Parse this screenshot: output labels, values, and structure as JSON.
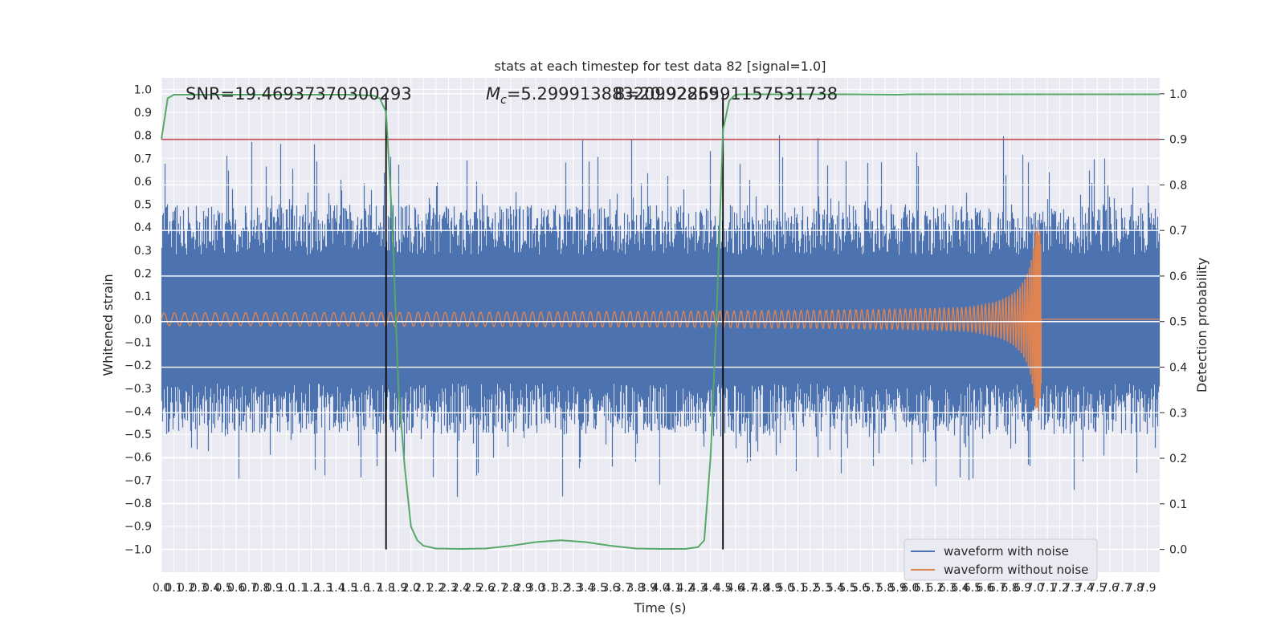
{
  "chart_data": {
    "type": "line",
    "title": "stats at each timestep for test data 82 [signal=1.0]",
    "xlabel": "Time (s)",
    "ylabel_left": "Whitened strain",
    "ylabel_right": "Detection probability",
    "xlim": [
      0.0,
      8.0
    ],
    "ylim_left": [
      -1.1,
      1.05
    ],
    "ylim_right": [
      -0.05,
      1.035
    ],
    "x_ticks": [
      "0.0",
      "0.1",
      "0.2",
      "0.3",
      "0.4",
      "0.5",
      "0.6",
      "0.7",
      "0.8",
      "0.9",
      "1.0",
      "1.1",
      "1.2",
      "1.3",
      "1.4",
      "1.5",
      "1.6",
      "1.7",
      "1.8",
      "1.9",
      "2.0",
      "2.1",
      "2.2",
      "2.3",
      "2.4",
      "2.5",
      "2.6",
      "2.7",
      "2.8",
      "2.9",
      "3.0",
      "3.1",
      "3.2",
      "3.3",
      "3.4",
      "3.5",
      "3.6",
      "3.7",
      "3.8",
      "3.9",
      "4.0",
      "4.1",
      "4.2",
      "4.3",
      "4.4",
      "4.5",
      "4.6",
      "4.7",
      "4.8",
      "4.9",
      "5.0",
      "5.1",
      "5.2",
      "5.3",
      "5.4",
      "5.5",
      "5.6",
      "5.7",
      "5.8",
      "5.9",
      "6.0",
      "6.1",
      "6.2",
      "6.3",
      "6.4",
      "6.5",
      "6.6",
      "6.7",
      "6.8",
      "6.9",
      "7.0",
      "7.1",
      "7.2",
      "7.3",
      "7.4",
      "7.5",
      "7.6",
      "7.7",
      "7.8",
      "7.9"
    ],
    "y_ticks_left": [
      "1.0",
      "0.9",
      "0.8",
      "0.7",
      "0.6",
      "0.5",
      "0.4",
      "0.3",
      "0.2",
      "0.1",
      "0.0",
      "−0.1",
      "−0.2",
      "−0.3",
      "−0.4",
      "−0.5",
      "−0.6",
      "−0.7",
      "−0.8",
      "−0.9",
      "−1.0"
    ],
    "y_ticks_right": [
      "1.0",
      "0.9",
      "0.8",
      "0.7",
      "0.6",
      "0.5",
      "0.4",
      "0.3",
      "0.2",
      "0.1",
      "0.0"
    ],
    "annotations": {
      "snr": "SNR=19.46937370300293",
      "mc_prefix": "M",
      "mc_sub": "c",
      "mc_value": "=5.29991388320992859",
      "overlap_text": "8=20.9226591157531738"
    },
    "threshold": 0.9,
    "event_window_s": [
      1.8,
      4.5
    ],
    "merger_time_s": 7.05,
    "detection_probability": {
      "x": [
        0.0,
        0.05,
        0.1,
        0.5,
        1.0,
        1.5,
        1.7,
        1.75,
        1.8,
        1.85,
        1.9,
        1.95,
        2.0,
        2.05,
        2.1,
        2.2,
        2.4,
        2.6,
        2.8,
        3.0,
        3.2,
        3.4,
        3.6,
        3.8,
        4.0,
        4.2,
        4.3,
        4.35,
        4.4,
        4.45,
        4.5,
        4.55,
        4.6,
        4.65,
        4.7,
        5.0,
        5.5,
        5.9,
        6.0,
        6.5,
        7.0,
        7.5,
        8.0
      ],
      "y": [
        0.9,
        0.99,
        0.998,
        0.998,
        0.998,
        0.998,
        0.996,
        0.99,
        0.96,
        0.72,
        0.35,
        0.18,
        0.05,
        0.02,
        0.008,
        0.002,
        0.001,
        0.002,
        0.008,
        0.016,
        0.02,
        0.016,
        0.008,
        0.002,
        0.001,
        0.001,
        0.005,
        0.02,
        0.2,
        0.52,
        0.92,
        0.985,
        0.998,
        0.999,
        0.999,
        0.999,
        0.999,
        0.998,
        0.999,
        0.999,
        0.999,
        0.999,
        0.999
      ]
    },
    "series": [
      {
        "name": "waveform with noise",
        "color": "#4c72b0"
      },
      {
        "name": "waveform without noise",
        "color": "#dd8452"
      },
      {
        "name": "detection probability",
        "color": "#55a868"
      },
      {
        "name": "threshold",
        "color": "#c44e52"
      },
      {
        "name": "event window",
        "color": "#000000"
      }
    ],
    "legend_position": "lower right"
  }
}
